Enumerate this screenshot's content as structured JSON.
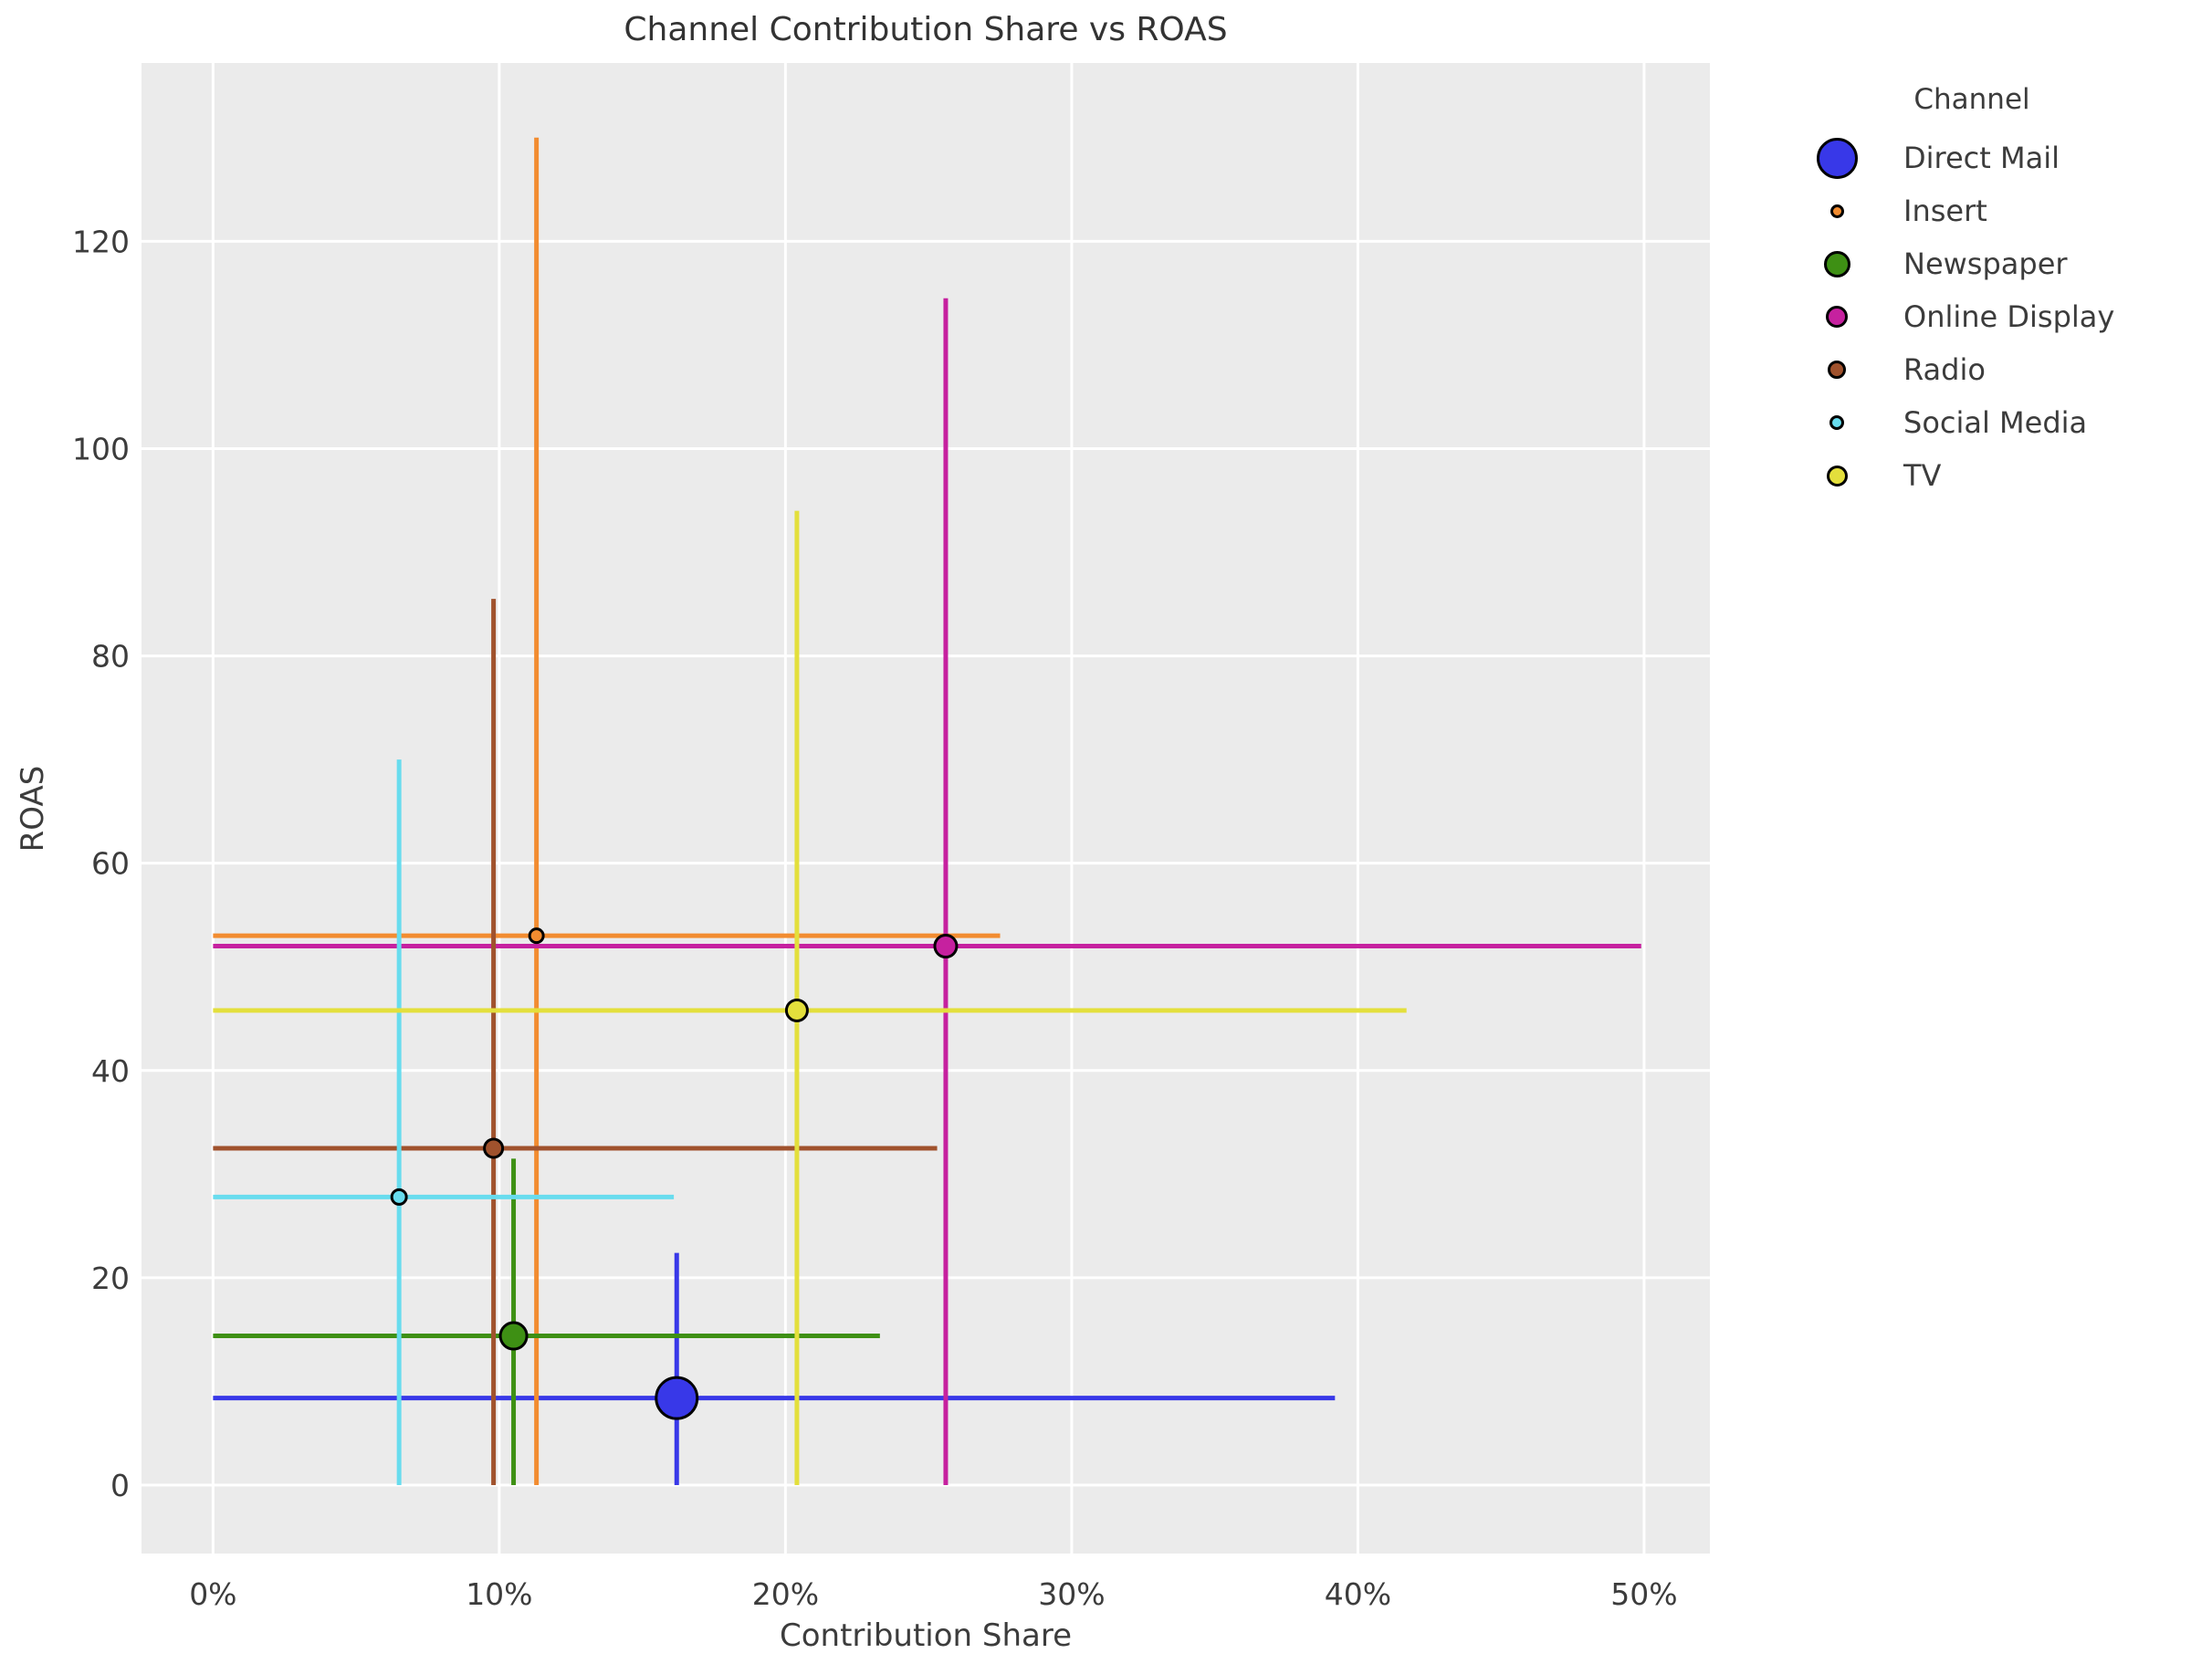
{
  "title": "Channel Contribution Share vs ROAS",
  "axes": {
    "x": {
      "label": "Contribution Share",
      "lim": [
        -2.5,
        52.3
      ],
      "ticks": [
        0,
        10,
        20,
        30,
        40,
        50
      ],
      "tick_labels": [
        "0%",
        "10%",
        "20%",
        "30%",
        "40%",
        "50%"
      ]
    },
    "y": {
      "label": "ROAS",
      "lim": [
        -6.6,
        137.2
      ],
      "ticks": [
        0,
        20,
        40,
        60,
        80,
        100,
        120
      ],
      "tick_labels": [
        "0",
        "20",
        "40",
        "60",
        "80",
        "100",
        "120"
      ]
    }
  },
  "legend": {
    "title": "Channel"
  },
  "style": {
    "plot_bg": "#EBEBEB",
    "grid_color": "#FFFFFF",
    "text_color": "#3C3C3C",
    "marker_edge": "#000000"
  },
  "chart_data": {
    "type": "scatter",
    "title": "Channel Contribution Share vs ROAS",
    "xlabel": "Contribution Share",
    "ylabel": "ROAS",
    "x_unit": "percent",
    "xlim": [
      -2.5,
      52.3
    ],
    "ylim": [
      -6.6,
      137.2
    ],
    "grid": true,
    "legend_position": "right",
    "series": [
      {
        "name": "Direct Mail",
        "color": "#3838E8",
        "x": 16.2,
        "y": 8.4,
        "x_err_range": [
          0,
          39.2
        ],
        "y_err_range": [
          0,
          22.4
        ],
        "marker_px": 45
      },
      {
        "name": "Insert",
        "color": "#F28C30",
        "x": 11.3,
        "y": 53.0,
        "x_err_range": [
          0,
          27.5
        ],
        "y_err_range": [
          0,
          130.0
        ],
        "marker_px": 15
      },
      {
        "name": "Newspaper",
        "color": "#3E9014",
        "x": 10.5,
        "y": 14.4,
        "x_err_range": [
          0,
          23.3
        ],
        "y_err_range": [
          0,
          31.5
        ],
        "marker_px": 29
      },
      {
        "name": "Online Display",
        "color": "#C6219F",
        "x": 25.6,
        "y": 52.0,
        "x_err_range": [
          0,
          49.9
        ],
        "y_err_range": [
          0,
          114.5
        ],
        "marker_px": 24
      },
      {
        "name": "Radio",
        "color": "#A0522D",
        "x": 9.8,
        "y": 32.5,
        "x_err_range": [
          0,
          25.3
        ],
        "y_err_range": [
          0,
          85.5
        ],
        "marker_px": 20
      },
      {
        "name": "Social Media",
        "color": "#68DCEE",
        "x": 6.5,
        "y": 27.8,
        "x_err_range": [
          0,
          16.1
        ],
        "y_err_range": [
          0,
          70.0
        ],
        "marker_px": 16
      },
      {
        "name": "TV",
        "color": "#E3DF3C",
        "x": 20.4,
        "y": 45.8,
        "x_err_range": [
          0,
          41.7
        ],
        "y_err_range": [
          0,
          94.0
        ],
        "marker_px": 23
      }
    ]
  }
}
